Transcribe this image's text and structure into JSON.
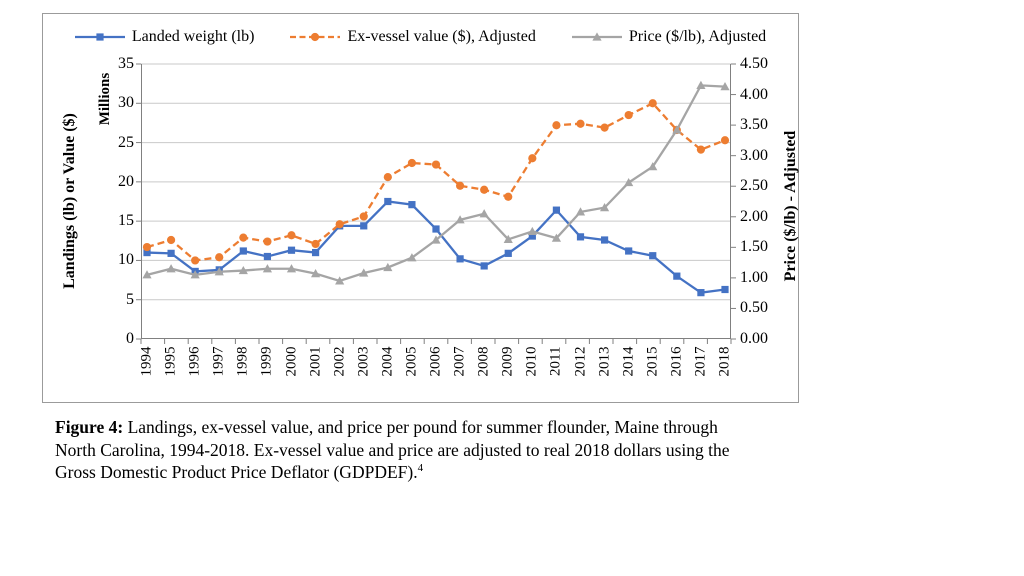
{
  "figure": {
    "legend": [
      {
        "label": "Landed weight (lb)",
        "color": "#4472C4",
        "marker": "square",
        "line_style": "solid"
      },
      {
        "label": "Ex-vessel value ($), Adjusted",
        "color": "#ED7D31",
        "marker": "circle",
        "line_style": "dashed"
      },
      {
        "label": "Price ($/lb), Adjusted",
        "color": "#A5A5A5",
        "marker": "triangle",
        "line_style": "solid"
      }
    ],
    "left_axis": {
      "title": "Landings (lb) or Value ($)",
      "units_label": "Millions",
      "ticks": [
        "0",
        "5",
        "10",
        "15",
        "20",
        "25",
        "30",
        "35"
      ]
    },
    "right_axis": {
      "title": "Price ($/lb) - Adjusted",
      "ticks": [
        "0.00",
        "0.50",
        "1.00",
        "1.50",
        "2.00",
        "2.50",
        "3.00",
        "3.50",
        "4.00",
        "4.50"
      ]
    },
    "colors": {
      "gridline": "#C9C9C9",
      "axis_line": "#808080",
      "text": "#000000"
    }
  },
  "chart_data": {
    "type": "line",
    "title": "",
    "x": [
      "1994",
      "1995",
      "1996",
      "1997",
      "1998",
      "1999",
      "2000",
      "2001",
      "2002",
      "2003",
      "2004",
      "2005",
      "2006",
      "2007",
      "2008",
      "2009",
      "2010",
      "2011",
      "2012",
      "2013",
      "2014",
      "2015",
      "2016",
      "2017",
      "2018"
    ],
    "series": [
      {
        "name": "Landed weight (lb)",
        "axis": "left",
        "color": "#4472C4",
        "marker": "square",
        "line_style": "solid",
        "values": [
          11.0,
          10.9,
          8.6,
          8.8,
          11.2,
          10.5,
          11.3,
          11.0,
          14.4,
          14.4,
          17.5,
          17.1,
          14.0,
          10.2,
          9.3,
          10.9,
          13.1,
          16.4,
          13.0,
          12.6,
          11.2,
          10.6,
          8.0,
          5.9,
          6.3
        ]
      },
      {
        "name": "Ex-vessel value ($), Adjusted",
        "axis": "left",
        "color": "#ED7D31",
        "marker": "circle",
        "line_style": "dashed",
        "values": [
          11.7,
          12.6,
          10.0,
          10.4,
          12.9,
          12.4,
          13.2,
          12.1,
          14.6,
          15.6,
          20.6,
          22.4,
          22.2,
          19.5,
          19.0,
          18.1,
          23.0,
          27.2,
          27.4,
          26.9,
          28.5,
          30.0,
          26.6,
          24.1,
          25.3
        ]
      },
      {
        "name": "Price ($/lb), Adjusted",
        "axis": "right",
        "color": "#A5A5A5",
        "marker": "triangle",
        "line_style": "solid",
        "values": [
          1.05,
          1.15,
          1.05,
          1.1,
          1.12,
          1.15,
          1.15,
          1.07,
          0.95,
          1.08,
          1.17,
          1.33,
          1.62,
          1.95,
          2.05,
          1.63,
          1.76,
          1.65,
          2.08,
          2.15,
          2.56,
          2.82,
          3.42,
          4.15,
          4.13
        ]
      }
    ],
    "ylabel_left": "Landings (lb) or Value ($)",
    "ylabel_left_units": "Millions",
    "ylabel_right": "Price ($/lb) - Adjusted",
    "left_ylim": [
      0,
      35
    ],
    "right_ylim": [
      0,
      4.5
    ],
    "left_tick_step": 5,
    "right_tick_step": 0.5,
    "grid": true,
    "legend_position": "top"
  },
  "caption": {
    "prefix": "Figure 4:",
    "line1_rest": " Landings, ex-vessel value, and price per pound for summer flounder, Maine through",
    "line2": "North Carolina, 1994-2018. Ex-vessel value and price are adjusted to real 2018 dollars using the",
    "line3": "Gross Domestic Product Price Deflator (GDPDEF).",
    "footnote": "4"
  }
}
